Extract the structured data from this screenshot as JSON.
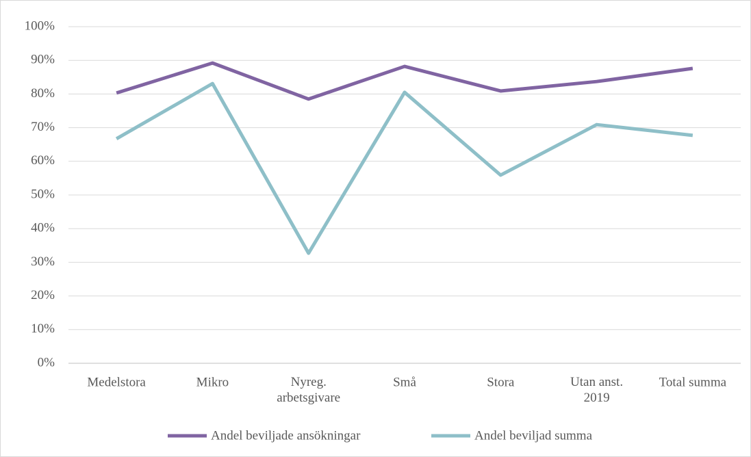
{
  "chart_data": {
    "type": "line",
    "categories": [
      "Medelstora",
      "Mikro",
      "Nyreg.\narbetsgivare",
      "Små",
      "Stora",
      "Utan anst.\n2019",
      "Total summa"
    ],
    "series": [
      {
        "name": "Andel beviljade ansökningar",
        "color": "#8064a2",
        "values": [
          80.3,
          89.2,
          78.5,
          88.2,
          80.9,
          83.7,
          87.6
        ]
      },
      {
        "name": "Andel beviljad summa",
        "color": "#8ebfc8",
        "values": [
          66.7,
          83.1,
          32.7,
          80.5,
          55.9,
          70.9,
          67.7
        ]
      }
    ],
    "ylim": [
      0,
      100
    ],
    "yticks": [
      {
        "value": 0,
        "label": "0%"
      },
      {
        "value": 10,
        "label": "10%"
      },
      {
        "value": 20,
        "label": "20%"
      },
      {
        "value": 30,
        "label": "30%"
      },
      {
        "value": 40,
        "label": "40%"
      },
      {
        "value": 50,
        "label": "50%"
      },
      {
        "value": 60,
        "label": "60%"
      },
      {
        "value": 70,
        "label": "70%"
      },
      {
        "value": 80,
        "label": "80%"
      },
      {
        "value": 90,
        "label": "90%"
      },
      {
        "value": 100,
        "label": "100%"
      }
    ],
    "grid": true,
    "legend": "bottom"
  }
}
